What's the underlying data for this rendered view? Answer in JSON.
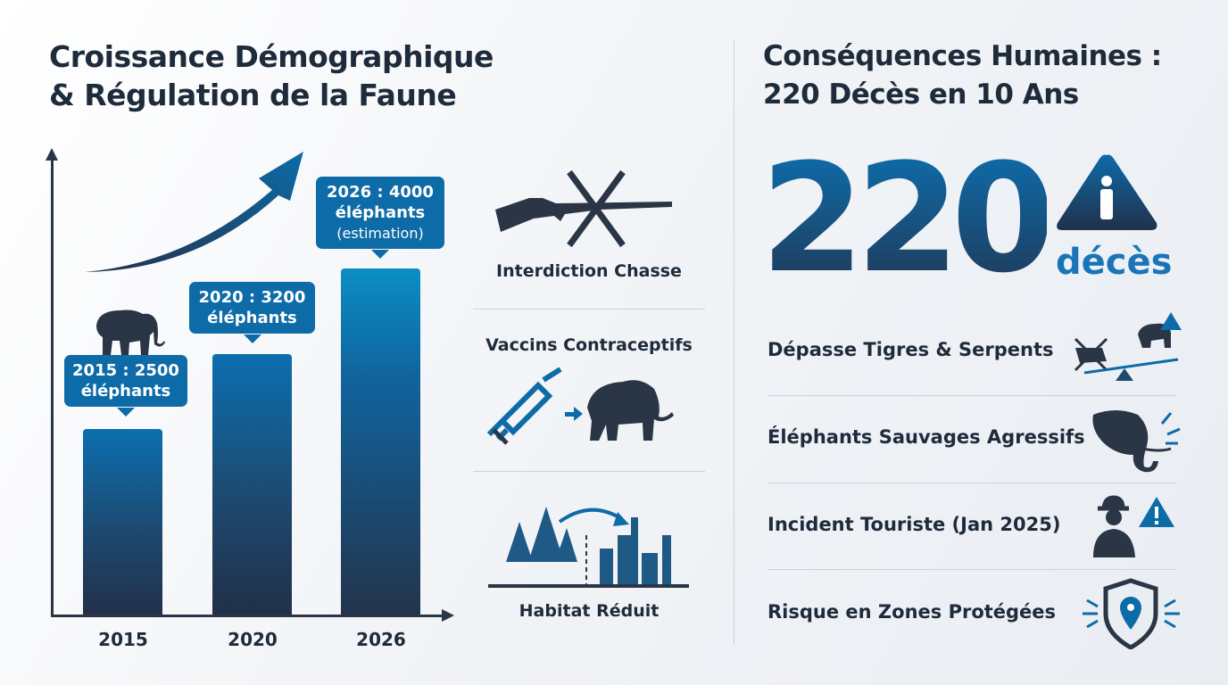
{
  "left": {
    "title_line1": "Croissance Démographique",
    "title_line2": "& Régulation de la Faune"
  },
  "chart_data": {
    "type": "bar",
    "categories": [
      "2015",
      "2020",
      "2026"
    ],
    "values": [
      2500,
      3200,
      4000
    ],
    "data_labels": [
      {
        "line1": "2015 : 2500",
        "line2": "éléphants"
      },
      {
        "line1": "2020 : 3200",
        "line2": "éléphants"
      },
      {
        "line1": "2026 : 4000",
        "line2": "éléphants",
        "line3": "(estimation)"
      }
    ],
    "title": "Croissance Démographique & Régulation de la Faune",
    "xlabel": "",
    "ylabel": "",
    "ylim": [
      767,
      4000
    ],
    "grid": false
  },
  "middle": {
    "items": [
      {
        "label": "Interdiction Chasse",
        "icon": "crossed-rifle-icon"
      },
      {
        "label": "Vaccins Contraceptifs",
        "icon": "syringe-elephant-icon"
      },
      {
        "label": "Habitat Réduit",
        "icon": "forest-to-city-icon"
      }
    ]
  },
  "right": {
    "title_line1": "Conséquences Humaines :",
    "title_line2": "220 Décès en 10 Ans",
    "big_number": "220",
    "big_unit": "décès",
    "items": [
      {
        "label": "Dépasse Tigres & Serpents",
        "icon": "scale-tiger-elephant-icon"
      },
      {
        "label": "Éléphants Sauvages Agressifs",
        "icon": "angry-elephant-icon"
      },
      {
        "label": "Incident Touriste (Jan 2025)",
        "icon": "tourist-warning-icon"
      },
      {
        "label": "Risque en Zones Protégées",
        "icon": "shield-location-icon"
      }
    ]
  },
  "colors": {
    "accent": "#0d6ba8",
    "dark": "#1e2b3b"
  }
}
